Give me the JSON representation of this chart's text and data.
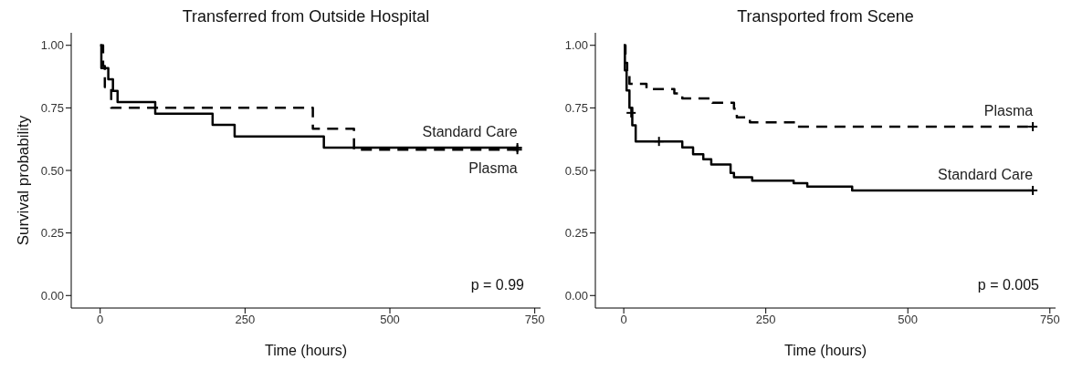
{
  "chart_data": [
    {
      "type": "step",
      "title": "Transferred from Outside Hospital",
      "xlabel": "Time (hours)",
      "ylabel": "Survival probability",
      "xlim": [
        -50,
        760
      ],
      "xticks": [
        0,
        250,
        500,
        750
      ],
      "ylim": [
        -0.05,
        1.05
      ],
      "yticks": [
        {
          "value": 0,
          "label": "0.00"
        },
        {
          "value": 0.25,
          "label": "0.25"
        },
        {
          "value": 0.5,
          "label": "0.50"
        },
        {
          "value": 0.75,
          "label": "0.75"
        },
        {
          "value": 1,
          "label": "1.00"
        }
      ],
      "grid": false,
      "legend": false,
      "annotations": [
        "p = 0.99"
      ],
      "series": [
        {
          "name": "Standard Care",
          "color": "#000000",
          "line_style": "solid",
          "x": [
            0,
            2,
            14,
            22,
            30,
            95,
            194,
            232,
            386,
            720
          ],
          "values": [
            1,
            0.909,
            0.864,
            0.818,
            0.773,
            0.727,
            0.682,
            0.636,
            0.591,
            0.591
          ]
        },
        {
          "name": "Plasma",
          "color": "#000000",
          "line_style": "dashed",
          "x": [
            0,
            5,
            8,
            19,
            367,
            438,
            720
          ],
          "values": [
            1,
            0.917,
            0.833,
            0.75,
            0.667,
            0.583,
            0.583
          ]
        },
        {
          "type": "scatter",
          "marker": "cross",
          "color": "#000000",
          "x": [
            720
          ],
          "values": [
            0.591
          ]
        },
        {
          "type": "scatter",
          "marker": "cross",
          "color": "#000000",
          "x": [
            720
          ],
          "values": [
            0.583
          ]
        }
      ]
    },
    {
      "type": "step",
      "title": "Transported from Scene",
      "xlabel": "Time (hours)",
      "xlim": [
        -50,
        760
      ],
      "xticks": [
        0,
        250,
        500,
        750
      ],
      "ylim": [
        -0.05,
        1.05
      ],
      "yticks": [
        {
          "value": 0,
          "label": "0.00"
        },
        {
          "value": 0.25,
          "label": "0.25"
        },
        {
          "value": 0.5,
          "label": "0.50"
        },
        {
          "value": 0.75,
          "label": "0.75"
        },
        {
          "value": 1,
          "label": "1.00"
        }
      ],
      "grid": false,
      "legend": false,
      "annotations": [
        "p = 0.005"
      ],
      "series": [
        {
          "name": "Plasma",
          "color": "#000000",
          "line_style": "dashed",
          "x": [
            0,
            3,
            6,
            10,
            40,
            89,
            103,
            156,
            194,
            199,
            222,
            302,
            720
          ],
          "values": [
            1,
            0.93,
            0.88,
            0.846,
            0.825,
            0.808,
            0.788,
            0.77,
            0.747,
            0.712,
            0.692,
            0.675,
            0.675
          ]
        },
        {
          "name": "Standard Care",
          "color": "#000000",
          "line_style": "solid",
          "x": [
            0,
            2,
            5,
            10,
            15,
            21,
            103,
            122,
            140,
            154,
            188,
            194,
            226,
            299,
            323,
            402,
            720
          ],
          "values": [
            1,
            0.9,
            0.82,
            0.75,
            0.68,
            0.616,
            0.592,
            0.565,
            0.545,
            0.524,
            0.49,
            0.473,
            0.459,
            0.449,
            0.435,
            0.42,
            0.42
          ]
        },
        {
          "type": "scatter",
          "marker": "cross",
          "color": "#000000",
          "x": [
            720
          ],
          "values": [
            0.675
          ]
        },
        {
          "type": "scatter",
          "marker": "cross",
          "color": "#000000",
          "x": [
            13,
            62,
            720
          ],
          "values": [
            0.73,
            0.616,
            0.42
          ]
        }
      ]
    }
  ]
}
